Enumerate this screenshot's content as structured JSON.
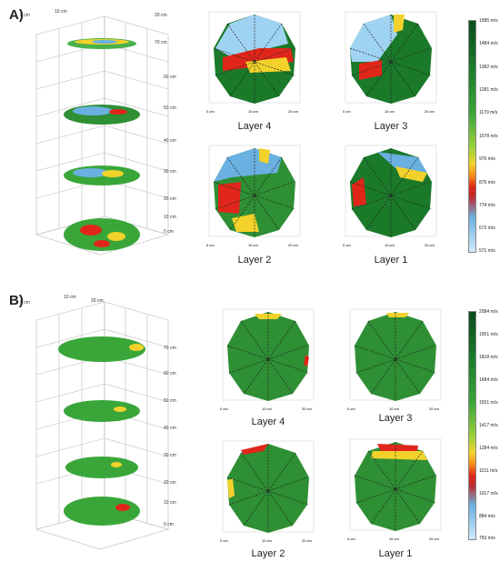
{
  "panels": [
    {
      "label": "A)",
      "stack_axis_ticks": [
        "70 cm",
        "60 cm",
        "50 cm",
        "40 cm",
        "30 cm",
        "20 cm",
        "10 cm",
        "0 cm"
      ],
      "stack_xy_ticks": [
        "0 cm",
        "10 cm",
        "20 cm"
      ],
      "layers": [
        {
          "title": "Layer 4"
        },
        {
          "title": "Layer 3"
        },
        {
          "title": "Layer 2"
        },
        {
          "title": "Layer 1"
        }
      ],
      "map_axis_ticks": [
        "0 cm",
        "10 cm",
        "20 cm"
      ],
      "colorbar_ticks": [
        "1585 m/s",
        "1484 m/s",
        "1382 m/s",
        "1281 m/s",
        "1179 m/s",
        "1078 m/s",
        "976 m/s",
        "875 m/s",
        "774 m/s",
        "672 m/s",
        "571 m/s"
      ],
      "colorbar_colors": [
        "#0b4a1e",
        "#1a7a2a",
        "#3aa63a",
        "#9fd13b",
        "#f2d22a",
        "#f58a1a",
        "#e0261a",
        "#c0282a",
        "#6ab0e0",
        "#9fd3f2",
        "#cfeaf8"
      ]
    },
    {
      "label": "B)",
      "stack_axis_ticks": [
        "70 cm",
        "60 cm",
        "50 cm",
        "40 cm",
        "30 cm",
        "20 cm",
        "10 cm",
        "0 cm"
      ],
      "stack_xy_ticks": [
        "0 cm",
        "10 cm",
        "20 cm"
      ],
      "layers": [
        {
          "title": "Layer 4"
        },
        {
          "title": "Layer 3"
        },
        {
          "title": "Layer 2"
        },
        {
          "title": "Layer 1"
        }
      ],
      "map_axis_ticks": [
        "0 cm",
        "10 cm",
        "20 cm"
      ],
      "colorbar_ticks": [
        "2084 m/s",
        "1951 m/s",
        "1818 m/s",
        "1684 m/s",
        "1551 m/s",
        "1417 m/s",
        "1284 m/s",
        "1151 m/s",
        "1017 m/s",
        "884 m/s",
        "750 m/s"
      ],
      "colorbar_colors": [
        "#0b4a1e",
        "#1a7a2a",
        "#3aa63a",
        "#9fd13b",
        "#f2d22a",
        "#f58a1a",
        "#e0261a",
        "#c0282a",
        "#6ab0e0",
        "#9fd3f2",
        "#cfeaf8"
      ]
    }
  ],
  "sensor_ids": [
    "1",
    "2",
    "3",
    "4",
    "5",
    "6",
    "7",
    "8",
    "9",
    "10"
  ]
}
